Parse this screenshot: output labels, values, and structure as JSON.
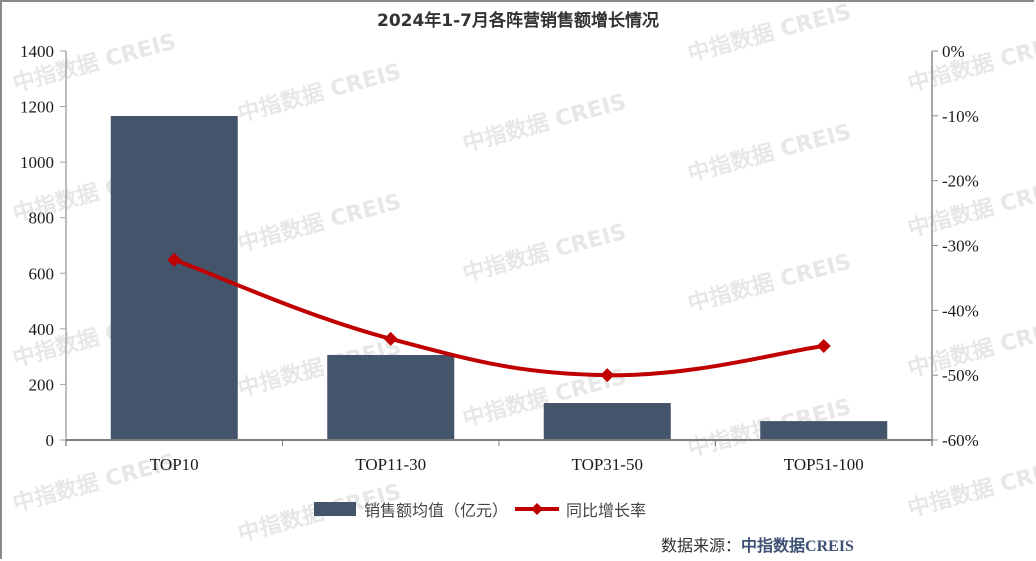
{
  "chart_data": {
    "type": "bar+line",
    "title": "2024年1-7月各阵营销售额增长情况",
    "categories": [
      "TOP10",
      "TOP11-30",
      "TOP31-50",
      "TOP51-100"
    ],
    "series": [
      {
        "name": "销售额均值（亿元）",
        "type": "bar",
        "axis": "left",
        "color": "#44546a",
        "values": [
          1166,
          306,
          133,
          68
        ]
      },
      {
        "name": "同比增长率",
        "type": "line",
        "axis": "right",
        "color": "#c00000",
        "marker": "diamond",
        "values": [
          -32.2,
          -44.4,
          -50.0,
          -45.5
        ]
      }
    ],
    "left_axis": {
      "label": "",
      "ylim": [
        0,
        1400
      ],
      "ticks": [
        "0",
        "200",
        "400",
        "600",
        "800",
        "1000",
        "1200",
        "1400"
      ]
    },
    "right_axis": {
      "label": "",
      "ylim": [
        -60,
        0
      ],
      "ticks": [
        "-60%",
        "-50%",
        "-40%",
        "-30%",
        "-20%",
        "-10%",
        "0%"
      ]
    },
    "xlabel": "",
    "grid": false,
    "legend_position": "bottom"
  },
  "header": {
    "title": "2024年1-7月各阵营销售额增长情况"
  },
  "legend": {
    "bar_label": "销售额均值（亿元）",
    "line_label": "同比增长率"
  },
  "footer": {
    "source_prefix": "数据来源：",
    "source_brand": "中指数据",
    "source_brand_en": "CREIS"
  },
  "watermark": {
    "text": "中指数据 CREIS"
  }
}
